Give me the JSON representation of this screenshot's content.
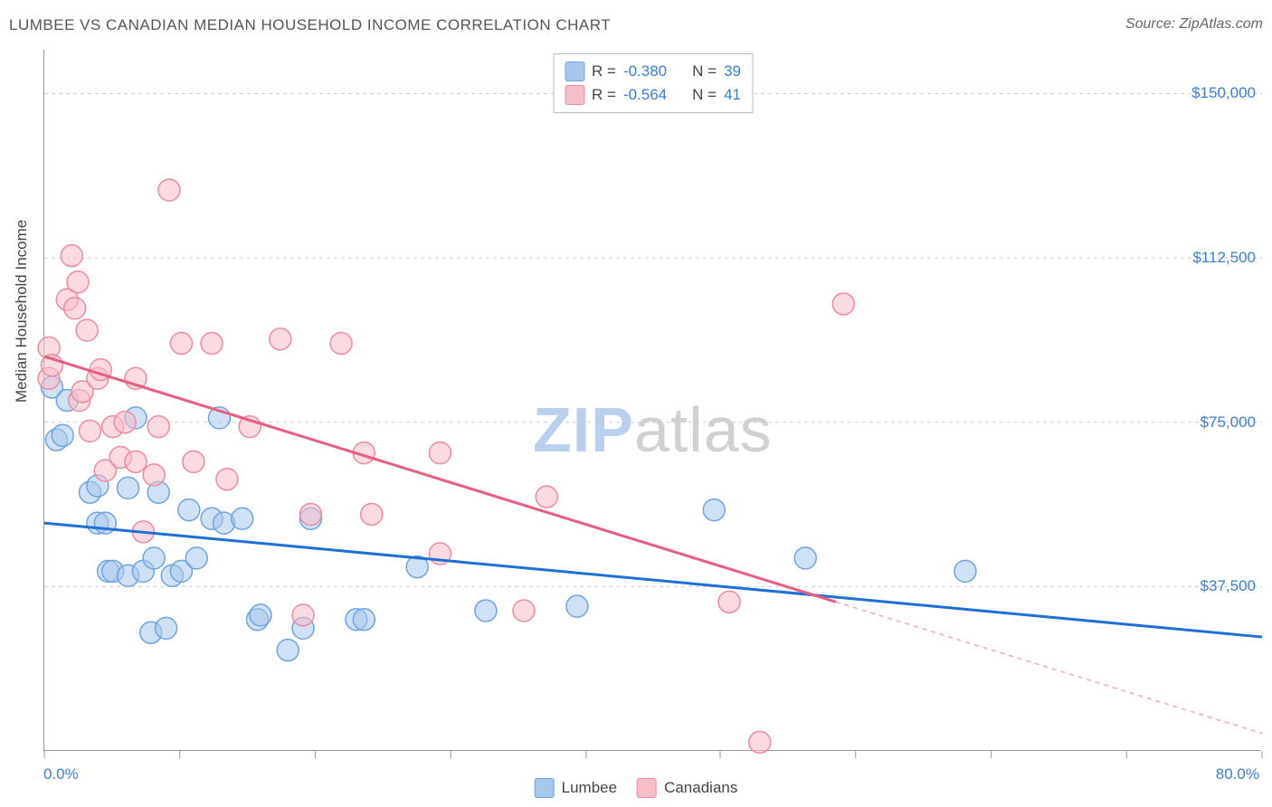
{
  "title": "LUMBEE VS CANADIAN MEDIAN HOUSEHOLD INCOME CORRELATION CHART",
  "source": "Source: ZipAtlas.com",
  "watermark_zip": "ZIP",
  "watermark_atlas": "atlas",
  "y_axis_title": "Median Household Income",
  "chart": {
    "type": "scatter",
    "xlim": [
      0,
      80
    ],
    "ylim": [
      0,
      160000
    ],
    "x_tick_positions": [
      0,
      8.9,
      17.8,
      26.7,
      35.6,
      44.4,
      53.3,
      62.2,
      71.1,
      80
    ],
    "y_gridlines": [
      37500,
      75000,
      112500,
      150000
    ],
    "y_tick_labels": [
      "$37,500",
      "$75,000",
      "$112,500",
      "$150,000"
    ],
    "x_min_label": "0.0%",
    "x_max_label": "80.0%",
    "background_color": "#ffffff",
    "grid_color": "#cccccc",
    "axis_color": "#999999",
    "label_color": "#3b7dd8",
    "series": [
      {
        "name": "Lumbee",
        "color_fill": "#a7c8ec",
        "color_stroke": "#6fa3de",
        "fill_opacity": 0.55,
        "marker_radius": 12,
        "r_value": "-0.380",
        "n_value": "39",
        "trend": {
          "x1": 0,
          "y1": 52000,
          "x2": 80,
          "y2": 26000,
          "color": "#1f6fd4",
          "width": 3,
          "dash": null
        },
        "points": [
          [
            0.5,
            83000
          ],
          [
            0.8,
            71000
          ],
          [
            1.2,
            72000
          ],
          [
            1.5,
            80000
          ],
          [
            3.0,
            59000
          ],
          [
            3.5,
            60500
          ],
          [
            3.5,
            52000
          ],
          [
            4.0,
            52000
          ],
          [
            4.2,
            41000
          ],
          [
            4.5,
            41000
          ],
          [
            5.5,
            40000
          ],
          [
            5.5,
            60000
          ],
          [
            6.0,
            76000
          ],
          [
            6.5,
            41000
          ],
          [
            7.0,
            27000
          ],
          [
            7.2,
            44000
          ],
          [
            7.5,
            59000
          ],
          [
            8.0,
            28000
          ],
          [
            8.4,
            40000
          ],
          [
            9.0,
            41000
          ],
          [
            9.5,
            55000
          ],
          [
            10.0,
            44000
          ],
          [
            11.0,
            53000
          ],
          [
            11.5,
            76000
          ],
          [
            11.8,
            52000
          ],
          [
            13.0,
            53000
          ],
          [
            14.0,
            30000
          ],
          [
            14.2,
            31000
          ],
          [
            16.0,
            23000
          ],
          [
            17.0,
            28000
          ],
          [
            17.5,
            53000
          ],
          [
            20.5,
            30000
          ],
          [
            21.0,
            30000
          ],
          [
            24.5,
            42000
          ],
          [
            29.0,
            32000
          ],
          [
            35.0,
            33000
          ],
          [
            44.0,
            55000
          ],
          [
            50.0,
            44000
          ],
          [
            60.5,
            41000
          ]
        ]
      },
      {
        "name": "Canadians",
        "color_fill": "#f7bdc9",
        "color_stroke": "#ec8ba1",
        "fill_opacity": 0.55,
        "marker_radius": 12,
        "r_value": "-0.564",
        "n_value": "41",
        "trend": {
          "x1": 0,
          "y1": 90000,
          "x2": 52,
          "y2": 34000,
          "color": "#e85e82",
          "width": 3,
          "dash": null
        },
        "trend_ext": {
          "x1": 52,
          "y1": 34000,
          "x2": 80,
          "y2": 4000,
          "color": "#f3a8b8",
          "width": 1.5,
          "dash": "5,5"
        },
        "points": [
          [
            0.3,
            92000
          ],
          [
            0.3,
            85000
          ],
          [
            0.5,
            88000
          ],
          [
            1.5,
            103000
          ],
          [
            1.8,
            113000
          ],
          [
            2.0,
            101000
          ],
          [
            2.2,
            107000
          ],
          [
            2.3,
            80000
          ],
          [
            2.5,
            82000
          ],
          [
            2.8,
            96000
          ],
          [
            3.0,
            73000
          ],
          [
            3.5,
            85000
          ],
          [
            3.7,
            87000
          ],
          [
            4.0,
            64000
          ],
          [
            4.5,
            74000
          ],
          [
            5.0,
            67000
          ],
          [
            5.3,
            75000
          ],
          [
            6.0,
            85000
          ],
          [
            6.0,
            66000
          ],
          [
            6.5,
            50000
          ],
          [
            7.2,
            63000
          ],
          [
            7.5,
            74000
          ],
          [
            8.2,
            128000
          ],
          [
            9.0,
            93000
          ],
          [
            9.8,
            66000
          ],
          [
            11.0,
            93000
          ],
          [
            12.0,
            62000
          ],
          [
            13.5,
            74000
          ],
          [
            15.5,
            94000
          ],
          [
            17.0,
            31000
          ],
          [
            17.5,
            54000
          ],
          [
            19.5,
            93000
          ],
          [
            21.0,
            68000
          ],
          [
            21.5,
            54000
          ],
          [
            26.0,
            45000
          ],
          [
            26.0,
            68000
          ],
          [
            31.5,
            32000
          ],
          [
            33.0,
            58000
          ],
          [
            45.0,
            34000
          ],
          [
            47.0,
            2000
          ],
          [
            52.5,
            102000
          ]
        ]
      }
    ],
    "legend_top": {
      "r_label": "R =",
      "n_label": "N ="
    },
    "legend_bottom": [
      {
        "label": "Lumbee",
        "fill": "#a7c8ec",
        "stroke": "#6fa3de"
      },
      {
        "label": "Canadians",
        "fill": "#f7bdc9",
        "stroke": "#ec8ba1"
      }
    ]
  }
}
